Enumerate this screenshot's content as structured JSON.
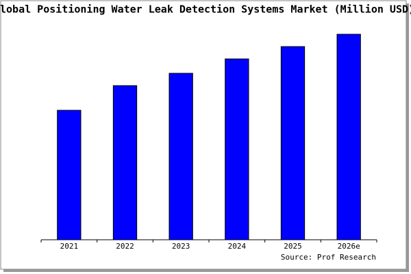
{
  "chart_data": {
    "type": "bar",
    "title": "Global Positioning Water Leak Detection Systems Market (Million USD)",
    "categories": [
      "2021",
      "2022",
      "2023",
      "2024",
      "2025",
      "2026e"
    ],
    "values": [
      63,
      75,
      81,
      88,
      94,
      100
    ],
    "color": "#0000ff",
    "ylim": [
      0,
      100
    ],
    "source": "Source: Prof Research"
  }
}
